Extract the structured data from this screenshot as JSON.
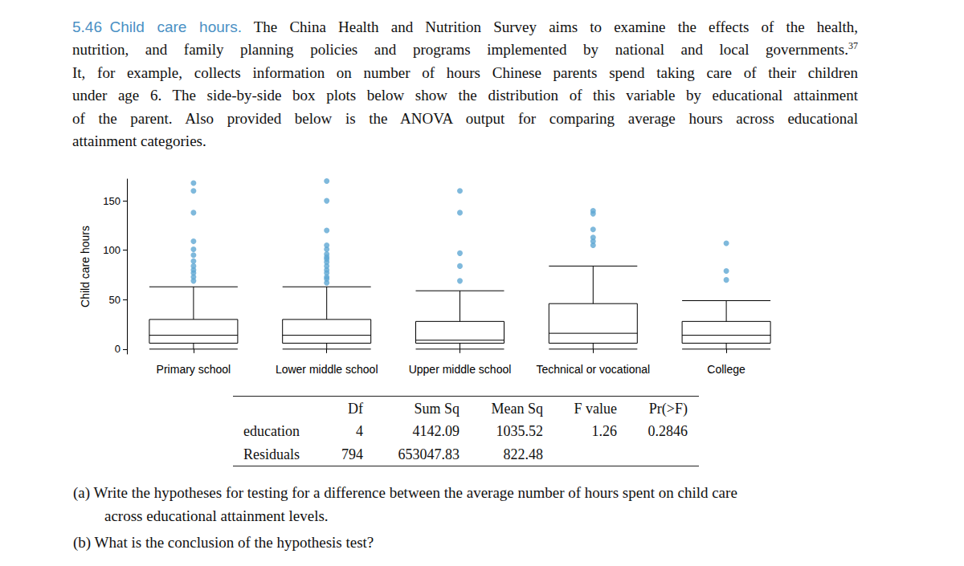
{
  "problem": {
    "number": "5.46",
    "title": "Child care hours.",
    "footnote": "37",
    "lines": [
      "The China Health and Nutrition Survey aims to examine the effects of the health,",
      "nutrition, and family planning policies and programs implemented by national and local governments.",
      "It, for example, collects information on number of hours Chinese parents spend taking care of their children",
      "under age 6. The side-by-side box plots below show the distribution of this variable by educational attainment",
      "of the parent. Also provided below is the ANOVA output for comparing average hours across educational",
      "attainment categories."
    ]
  },
  "chart_data": {
    "type": "boxplot",
    "ylabel": "Child care hours",
    "categories": [
      "Primary school",
      "Lower middle school",
      "Upper middle school",
      "Technical or vocational",
      "College"
    ],
    "values": [
      [
        0,
        6,
        14,
        30,
        63
      ],
      [
        0,
        6,
        14,
        30,
        63
      ],
      [
        0,
        6,
        9,
        28,
        59
      ],
      [
        0,
        6,
        16,
        46,
        84
      ],
      [
        0,
        6,
        14,
        28,
        49
      ]
    ],
    "outliers": [
      [
        168,
        160,
        138,
        109,
        101,
        95,
        89,
        84,
        80,
        77,
        73,
        69
      ],
      [
        170,
        150,
        120,
        105,
        101,
        96,
        93,
        91,
        88,
        84,
        80,
        77,
        73,
        71,
        67
      ],
      [
        160,
        138,
        97,
        84,
        69
      ],
      [
        140,
        137,
        121,
        113,
        109,
        105
      ],
      [
        107,
        79,
        70
      ]
    ],
    "color": "#5fa8d3",
    "ylim": [
      -5,
      172
    ],
    "yticks": [
      0,
      50,
      100,
      150
    ],
    "grid": false
  },
  "table": {
    "header": [
      null,
      "Df",
      "Sum Sq",
      "Mean Sq",
      "F value",
      "Pr(>F)"
    ],
    "rows": [
      [
        "education",
        "4",
        "4142.09",
        "1035.52",
        "1.26",
        "0.2846"
      ],
      [
        "Residuals",
        "794",
        "653047.83",
        "822.48",
        null,
        null
      ]
    ]
  },
  "questions": [
    {
      "label": "(a)",
      "lines": [
        "Write the hypotheses for testing for a difference between the average number of hours spent on child care",
        "across educational attainment levels."
      ]
    },
    {
      "label": "(b)",
      "lines": [
        "What is the conclusion of the hypothesis test?"
      ]
    }
  ]
}
